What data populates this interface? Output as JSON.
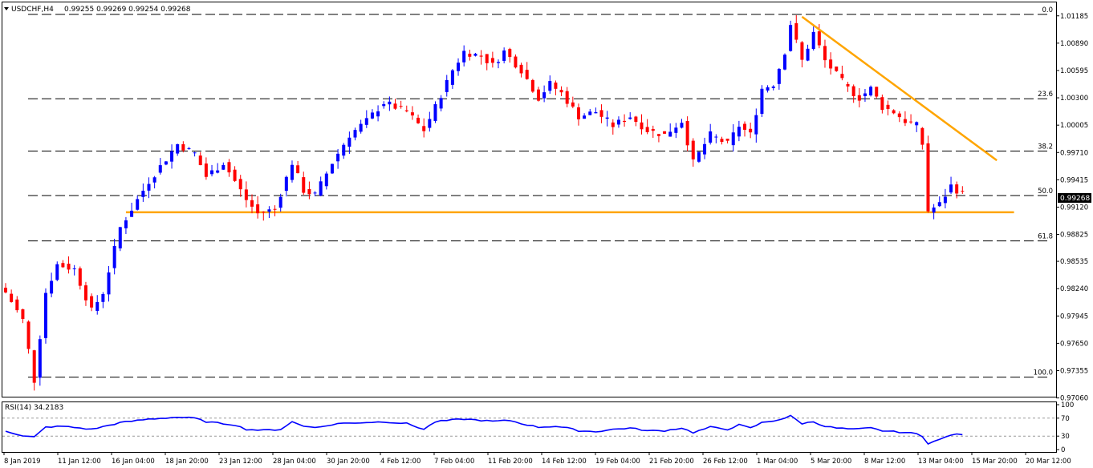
{
  "header": {
    "symbol_tf": "USDCHF,H4",
    "ohlc": "0.99255 0.99269 0.99254 0.99268"
  },
  "current_price": "0.99268",
  "colors": {
    "background": "#ffffff",
    "bull_candle": "#0000ff",
    "bear_candle": "#ff0000",
    "trendline": "#ffa500",
    "fib_lines": "#000000",
    "rsi_line": "#0000ff",
    "price_tag_bg": "#000000",
    "price_tag_text": "#ffffff"
  },
  "chart_data": [
    {
      "type": "candlestick",
      "title": "USDCHF,H4",
      "ylim": [
        0.97065,
        1.0133
      ],
      "y_ticks": [
        "1.01185",
        "1.00890",
        "1.00595",
        "1.00300",
        "1.00005",
        "0.99710",
        "0.99415",
        "0.99120",
        "0.98825",
        "0.98535",
        "0.98240",
        "0.97945",
        "0.97650",
        "0.97355",
        "0.97060"
      ],
      "x_ticks": [
        "8 Jan 2019",
        "11 Jan 12:00",
        "16 Jan 04:00",
        "18 Jan 20:00",
        "23 Jan 12:00",
        "28 Jan 04:00",
        "30 Jan 20:00",
        "4 Feb 12:00",
        "7 Feb 04:00",
        "11 Feb 20:00",
        "14 Feb 12:00",
        "19 Feb 04:00",
        "21 Feb 20:00",
        "26 Feb 12:00",
        "1 Mar 04:00",
        "5 Mar 20:00",
        "8 Mar 12:00",
        "13 Mar 04:00",
        "15 Mar 20:00",
        "20 Mar 12:00"
      ],
      "x_index_range": [
        0,
        179
      ],
      "fib_levels": [
        {
          "label": "0.0",
          "value": 1.012
        },
        {
          "label": "23.6",
          "value": 1.0029
        },
        {
          "label": "38.2",
          "value": 0.99725
        },
        {
          "label": "50.0",
          "value": 0.99245
        },
        {
          "label": "61.8",
          "value": 0.98755
        },
        {
          "label": "100.0",
          "value": 0.97285
        }
      ],
      "horizontal_support": {
        "value": 0.99065
      },
      "trendline": {
        "from": {
          "bar": 139,
          "value": 1.01175
        },
        "to": {
          "bar": 173,
          "value": 0.99625
        }
      },
      "keypoints": [
        [
          0,
          0.982
        ],
        [
          3,
          0.979
        ],
        [
          5,
          0.9725
        ],
        [
          7,
          0.982
        ],
        [
          9,
          0.985
        ],
        [
          12,
          0.9845
        ],
        [
          15,
          0.98
        ],
        [
          17,
          0.982
        ],
        [
          20,
          0.989
        ],
        [
          25,
          0.994
        ],
        [
          30,
          0.998
        ],
        [
          33,
          0.997
        ],
        [
          35,
          0.9945
        ],
        [
          38,
          0.996
        ],
        [
          42,
          0.992
        ],
        [
          44,
          0.9905
        ],
        [
          47,
          0.991
        ],
        [
          50,
          0.996
        ],
        [
          52,
          0.993
        ],
        [
          54,
          0.9925
        ],
        [
          57,
          0.996
        ],
        [
          60,
          0.999
        ],
        [
          63,
          1.0005
        ],
        [
          66,
          1.0025
        ],
        [
          70,
          1.0015
        ],
        [
          73,
          0.9995
        ],
        [
          75,
          1.002
        ],
        [
          78,
          1.006
        ],
        [
          80,
          1.008
        ],
        [
          83,
          1.0075
        ],
        [
          85,
          1.0065
        ],
        [
          87,
          1.008
        ],
        [
          90,
          1.006
        ],
        [
          93,
          1.003
        ],
        [
          95,
          1.0045
        ],
        [
          97,
          1.0035
        ],
        [
          100,
          1.001
        ],
        [
          103,
          1.0015
        ],
        [
          106,
          1.0
        ],
        [
          109,
          1.001
        ],
        [
          112,
          0.9995
        ],
        [
          115,
          0.999
        ],
        [
          118,
          1.0005
        ],
        [
          120,
          0.996
        ],
        [
          123,
          0.999
        ],
        [
          126,
          0.998
        ],
        [
          128,
          1.0
        ],
        [
          130,
          0.999
        ],
        [
          132,
          1.004
        ],
        [
          134,
          1.0045
        ],
        [
          136,
          1.008
        ],
        [
          137,
          1.011
        ],
        [
          139,
          1.007
        ],
        [
          141,
          1.01
        ],
        [
          143,
          1.007
        ],
        [
          145,
          1.0055
        ],
        [
          147,
          1.004
        ],
        [
          149,
          1.003
        ],
        [
          151,
          1.004
        ],
        [
          153,
          1.002
        ],
        [
          155,
          1.0015
        ],
        [
          157,
          1.0005
        ],
        [
          159,
          1.0
        ],
        [
          160,
          0.998
        ],
        [
          161,
          0.9908
        ],
        [
          163,
          0.9915
        ],
        [
          165,
          0.9935
        ],
        [
          167,
          0.9926
        ]
      ],
      "last_value": 0.99268
    },
    {
      "type": "line",
      "title": "RSI(14) 34.2183",
      "ylim": [
        0,
        100
      ],
      "y_ticks": [
        "100",
        "70",
        "30",
        "0"
      ],
      "reference_levels": [
        70,
        30
      ],
      "keypoints": [
        [
          0,
          42
        ],
        [
          3,
          30
        ],
        [
          5,
          28
        ],
        [
          7,
          50
        ],
        [
          10,
          52
        ],
        [
          15,
          45
        ],
        [
          20,
          60
        ],
        [
          25,
          68
        ],
        [
          30,
          72
        ],
        [
          33,
          70
        ],
        [
          35,
          62
        ],
        [
          40,
          55
        ],
        [
          42,
          45
        ],
        [
          45,
          43
        ],
        [
          48,
          45
        ],
        [
          50,
          62
        ],
        [
          52,
          52
        ],
        [
          55,
          50
        ],
        [
          58,
          58
        ],
        [
          62,
          60
        ],
        [
          66,
          62
        ],
        [
          70,
          58
        ],
        [
          73,
          45
        ],
        [
          75,
          62
        ],
        [
          78,
          66
        ],
        [
          80,
          68
        ],
        [
          85,
          63
        ],
        [
          88,
          65
        ],
        [
          90,
          58
        ],
        [
          93,
          50
        ],
        [
          96,
          52
        ],
        [
          98,
          48
        ],
        [
          100,
          42
        ],
        [
          103,
          40
        ],
        [
          106,
          45
        ],
        [
          109,
          48
        ],
        [
          112,
          42
        ],
        [
          115,
          42
        ],
        [
          118,
          48
        ],
        [
          120,
          38
        ],
        [
          123,
          50
        ],
        [
          126,
          45
        ],
        [
          128,
          55
        ],
        [
          130,
          48
        ],
        [
          132,
          60
        ],
        [
          134,
          64
        ],
        [
          136,
          70
        ],
        [
          137,
          75
        ],
        [
          139,
          58
        ],
        [
          141,
          62
        ],
        [
          143,
          52
        ],
        [
          145,
          48
        ],
        [
          148,
          45
        ],
        [
          151,
          48
        ],
        [
          153,
          42
        ],
        [
          155,
          40
        ],
        [
          157,
          38
        ],
        [
          159,
          35
        ],
        [
          160,
          30
        ],
        [
          161,
          14
        ],
        [
          163,
          22
        ],
        [
          165,
          33
        ],
        [
          167,
          34
        ]
      ],
      "last_value": 34.2183
    }
  ],
  "rsi": {
    "label": "RSI(14) 34.2183",
    "ticks": [
      "100",
      "70",
      "30",
      "0"
    ]
  }
}
